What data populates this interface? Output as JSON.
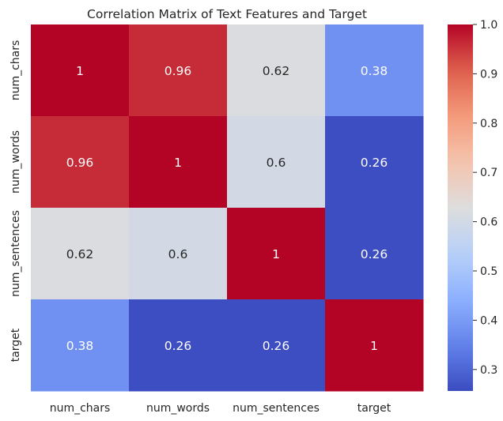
{
  "chart_data": {
    "type": "heatmap",
    "title": "Correlation Matrix of Text Features and Target",
    "x_labels": [
      "num_chars",
      "num_words",
      "num_sentences",
      "target"
    ],
    "y_labels": [
      "num_chars",
      "num_words",
      "num_sentences",
      "target"
    ],
    "values": [
      [
        1,
        0.96,
        0.62,
        0.38
      ],
      [
        0.96,
        1,
        0.6,
        0.26
      ],
      [
        0.62,
        0.6,
        1,
        0.26
      ],
      [
        0.38,
        0.26,
        0.26,
        1
      ]
    ],
    "value_labels": [
      [
        "1",
        "0.96",
        "0.62",
        "0.38"
      ],
      [
        "0.96",
        "1",
        "0.6",
        "0.26"
      ],
      [
        "0.62",
        "0.6",
        "1",
        "0.26"
      ],
      [
        "0.38",
        "0.26",
        "0.26",
        "1"
      ]
    ],
    "colormap": "coolwarm",
    "colorbar": {
      "min": 0.2564,
      "max": 1.0,
      "ticks": [
        0.3,
        0.4,
        0.5,
        0.6,
        0.7,
        0.8,
        0.9,
        1.0
      ],
      "tick_labels": [
        "0.3",
        "0.4",
        "0.5",
        "0.6",
        "0.7",
        "0.8",
        "0.9",
        "1.0"
      ]
    },
    "grid": false
  }
}
